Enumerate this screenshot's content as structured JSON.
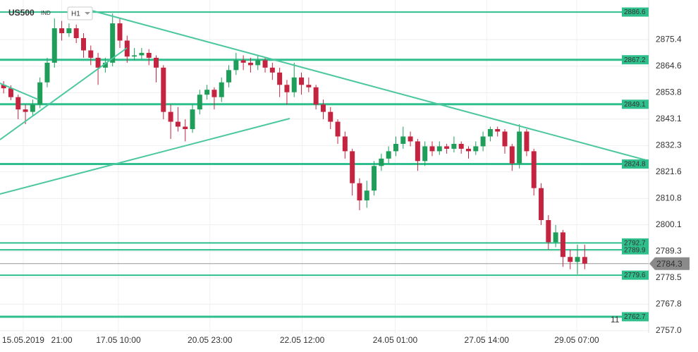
{
  "chart_data": {
    "type": "candlestick",
    "title": "US500",
    "instrument_type": "IND",
    "timeframe": "H1",
    "candles": [
      [
        2857,
        2858.5,
        2853.5,
        2855.6
      ],
      [
        2855.6,
        2856.8,
        2850.8,
        2852
      ],
      [
        2852,
        2853,
        2843,
        2847
      ],
      [
        2847,
        2849,
        2841,
        2846
      ],
      [
        2846,
        2851,
        2844.5,
        2849
      ],
      [
        2849,
        2860,
        2847.5,
        2858
      ],
      [
        2858,
        2868,
        2856,
        2866
      ],
      [
        2866,
        2884,
        2864,
        2880
      ],
      [
        2880,
        2883,
        2875,
        2878
      ],
      [
        2878,
        2882,
        2876.5,
        2880
      ],
      [
        2880,
        2881.5,
        2874,
        2876
      ],
      [
        2876,
        2878,
        2868,
        2871
      ],
      [
        2871,
        2873,
        2865,
        2868
      ],
      [
        2868,
        2870,
        2857,
        2864
      ],
      [
        2864,
        2868,
        2862,
        2866
      ],
      [
        2866,
        2886,
        2864.5,
        2882
      ],
      [
        2882,
        2884,
        2872,
        2875
      ],
      [
        2875,
        2877,
        2866,
        2868.5
      ],
      [
        2868.5,
        2872,
        2867,
        2869
      ],
      [
        2869,
        2872,
        2867.5,
        2870
      ],
      [
        2870,
        2871.5,
        2865,
        2868
      ],
      [
        2868,
        2869,
        2858,
        2864
      ],
      [
        2864,
        2865,
        2843,
        2846
      ],
      [
        2846,
        2849,
        2835,
        2842
      ],
      [
        2842,
        2848,
        2838,
        2840
      ],
      [
        2840,
        2843,
        2834,
        2839
      ],
      [
        2839,
        2849,
        2837.5,
        2847
      ],
      [
        2847,
        2855,
        2845,
        2853
      ],
      [
        2853,
        2857,
        2851,
        2855
      ],
      [
        2855,
        2856,
        2847,
        2852
      ],
      [
        2852,
        2860,
        2850,
        2858
      ],
      [
        2858,
        2865,
        2856,
        2863
      ],
      [
        2863,
        2870,
        2861,
        2867
      ],
      [
        2867,
        2869,
        2863,
        2866
      ],
      [
        2866,
        2868,
        2862,
        2865
      ],
      [
        2865,
        2869,
        2863,
        2867
      ],
      [
        2867,
        2868,
        2862,
        2864
      ],
      [
        2864,
        2866,
        2859,
        2862
      ],
      [
        2862,
        2864,
        2852,
        2857
      ],
      [
        2857,
        2859,
        2849,
        2854
      ],
      [
        2854,
        2866,
        2852,
        2860
      ],
      [
        2860,
        2862,
        2853,
        2857
      ],
      [
        2857,
        2860,
        2854,
        2856
      ],
      [
        2856,
        2857,
        2847,
        2849
      ],
      [
        2849,
        2851,
        2843,
        2846
      ],
      [
        2846,
        2848,
        2839,
        2842
      ],
      [
        2842,
        2843,
        2833,
        2836
      ],
      [
        2836,
        2838,
        2827,
        2830
      ],
      [
        2830,
        2831,
        2812,
        2817
      ],
      [
        2817,
        2819,
        2806,
        2810
      ],
      [
        2810,
        2818,
        2807,
        2814
      ],
      [
        2814,
        2826,
        2812,
        2824
      ],
      [
        2824,
        2829,
        2822,
        2827
      ],
      [
        2827,
        2832,
        2825,
        2830
      ],
      [
        2830,
        2836,
        2828,
        2833
      ],
      [
        2833,
        2840,
        2831,
        2836
      ],
      [
        2836,
        2838,
        2832,
        2834
      ],
      [
        2834,
        2835,
        2822,
        2826
      ],
      [
        2826,
        2834,
        2824,
        2832
      ],
      [
        2832,
        2834,
        2828,
        2830
      ],
      [
        2830,
        2834,
        2828.5,
        2832
      ],
      [
        2832,
        2833,
        2829,
        2831
      ],
      [
        2831,
        2836,
        2829.5,
        2833
      ],
      [
        2833,
        2834,
        2829,
        2831
      ],
      [
        2831,
        2832,
        2827,
        2830
      ],
      [
        2830,
        2834,
        2828.5,
        2832
      ],
      [
        2832,
        2838,
        2830,
        2836
      ],
      [
        2836,
        2840,
        2834,
        2839
      ],
      [
        2839,
        2840,
        2836,
        2838
      ],
      [
        2838,
        2839,
        2829,
        2832
      ],
      [
        2832,
        2833,
        2822,
        2825
      ],
      [
        2825,
        2841,
        2823,
        2838
      ],
      [
        2838,
        2839,
        2828,
        2830
      ],
      [
        2830,
        2831,
        2812,
        2815
      ],
      [
        2815,
        2817,
        2800,
        2802
      ],
      [
        2802,
        2804,
        2790,
        2793
      ],
      [
        2793,
        2800,
        2791,
        2797
      ],
      [
        2797,
        2798,
        2783,
        2787
      ],
      [
        2787,
        2790,
        2782,
        2785
      ],
      [
        2785,
        2792,
        2780,
        2787
      ],
      [
        2787,
        2792,
        2782,
        2784.3
      ]
    ],
    "up_color": "#1f9e5a",
    "down_color": "#c4243f",
    "xlim": [
      -0.5,
      88.8
    ],
    "xticks": [
      {
        "value": 2.7,
        "label": "15.05.2019"
      },
      {
        "value": 8,
        "label": "21:00"
      },
      {
        "value": 15.8,
        "label": "17.05 10:00"
      },
      {
        "value": 28.4,
        "label": "20.05 23:00"
      },
      {
        "value": 41.1,
        "label": "22.05 12:00"
      },
      {
        "value": 53.9,
        "label": "24.05 01:00"
      },
      {
        "value": 66.5,
        "label": "27.05 14:00"
      },
      {
        "value": 78.9,
        "label": "29.05 07:00"
      }
    ],
    "ylim": [
      2756.1,
      2891.5
    ],
    "yticks": [
      2875.4,
      2864.6,
      2853.8,
      2843.1,
      2832.3,
      2821.6,
      2810.8,
      2800.1,
      2789.3,
      2778.5,
      2767.8,
      {
        "value": 2757,
        "label": "2757.0"
      }
    ],
    "grid": true,
    "levels": [
      2886.6,
      2867.2,
      2849.1,
      2824.8,
      2792.7,
      2789.9,
      2779.6,
      2762.7
    ],
    "level_color": "#2fbf8c",
    "current_price": 2784.3,
    "annotation": "11"
  }
}
